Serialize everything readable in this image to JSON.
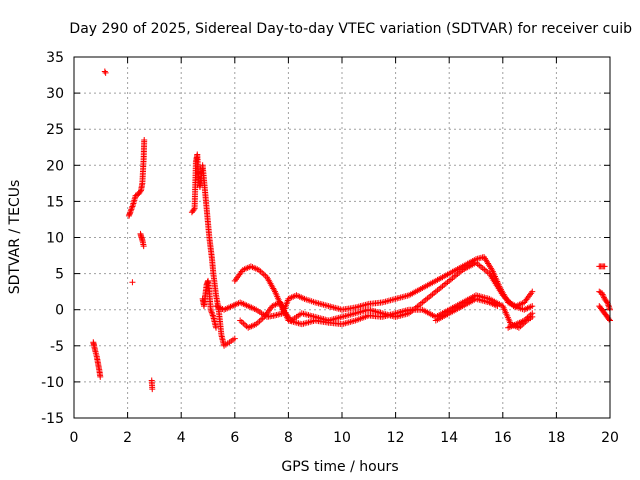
{
  "chart_data": {
    "type": "scatter",
    "title": "Day 290 of 2025, Sidereal Day-to-day VTEC variation (SDTVAR) for receiver cuib",
    "xlabel": "GPS time / hours",
    "ylabel": "SDTVAR / TECUs",
    "xlim": [
      0,
      20
    ],
    "ylim": [
      -15,
      35
    ],
    "xticks": [
      0,
      2,
      4,
      6,
      8,
      10,
      12,
      14,
      16,
      18,
      20
    ],
    "yticks": [
      -15,
      -10,
      -5,
      0,
      5,
      10,
      15,
      20,
      25,
      30,
      35
    ],
    "grid": true,
    "marker": "+",
    "color": "#ff0000",
    "series": [
      {
        "name": "SDTVAR",
        "segments": [
          {
            "x": [
              0.72,
              0.75,
              0.8,
              0.85,
              0.9,
              0.95,
              0.98
            ],
            "y": [
              -4.5,
              -5.0,
              -5.8,
              -6.5,
              -7.5,
              -8.5,
              -9.3
            ]
          },
          {
            "x": [
              1.15,
              1.18
            ],
            "y": [
              33.0,
              32.8
            ]
          },
          {
            "x": [
              2.05,
              2.1,
              2.2,
              2.3,
              2.4,
              2.5,
              2.55,
              2.6,
              2.62
            ],
            "y": [
              13.0,
              13.5,
              14.5,
              15.8,
              16.0,
              16.5,
              17.5,
              21.0,
              23.5
            ]
          },
          {
            "x": [
              2.48,
              2.52,
              2.56,
              2.6
            ],
            "y": [
              10.5,
              10.0,
              9.5,
              8.8
            ]
          },
          {
            "x": [
              2.18
            ],
            "y": [
              3.8
            ]
          },
          {
            "x": [
              2.9,
              2.92
            ],
            "y": [
              -9.8,
              -11.0
            ]
          },
          {
            "x": [
              4.4,
              4.5,
              4.55,
              4.6,
              4.65,
              4.7,
              4.8,
              4.9,
              4.95,
              5.0,
              5.05,
              5.1,
              5.15,
              5.2,
              5.3,
              5.4,
              5.5,
              5.6,
              5.8,
              6.0
            ],
            "y": [
              13.5,
              14.0,
              20.5,
              21.5,
              18.0,
              17.0,
              20.0,
              16.0,
              14.0,
              12.0,
              10.0,
              8.5,
              7.0,
              5.0,
              2.0,
              0.0,
              -3.5,
              -5.0,
              -4.5,
              -4.0
            ]
          },
          {
            "x": [
              4.8,
              4.85,
              4.9,
              4.95,
              5.0,
              5.05,
              5.1,
              5.2,
              5.3
            ],
            "y": [
              1.5,
              0.5,
              2.0,
              3.5,
              4.0,
              2.5,
              0.0,
              -1.0,
              -2.5
            ]
          },
          {
            "x": [
              5.3,
              5.6,
              5.9,
              6.2,
              6.5,
              6.8,
              7.0,
              7.2,
              7.5,
              7.8,
              8.0,
              8.3,
              8.6,
              9.0,
              9.5,
              10.0,
              10.5,
              11.0,
              11.5,
              12.0,
              12.5,
              13.0,
              13.5,
              14.0,
              14.5,
              15.0,
              15.3,
              15.6,
              15.9,
              16.2,
              16.5,
              16.8,
              17.1
            ],
            "y": [
              0.5,
              0.0,
              0.5,
              1.0,
              0.5,
              0.0,
              -0.5,
              -1.0,
              -0.8,
              -0.5,
              1.5,
              2.0,
              1.5,
              1.0,
              0.5,
              0.0,
              0.3,
              0.8,
              1.0,
              1.5,
              2.0,
              3.0,
              4.0,
              5.0,
              6.0,
              7.0,
              7.3,
              5.5,
              3.0,
              1.0,
              0.5,
              1.0,
              2.5
            ]
          },
          {
            "x": [
              6.0,
              6.3,
              6.6,
              6.9,
              7.2,
              7.5,
              7.8,
              8.1,
              8.5,
              9.0,
              9.5,
              10.0,
              10.5,
              11.0,
              11.5,
              12.0,
              12.5,
              13.0,
              13.5,
              14.0,
              14.5,
              15.0,
              15.5,
              16.0,
              16.4,
              16.8,
              17.1
            ],
            "y": [
              4.0,
              5.5,
              6.0,
              5.5,
              4.5,
              2.5,
              0.0,
              -1.5,
              -0.5,
              -1.0,
              -1.5,
              -1.0,
              -0.5,
              0.0,
              -0.5,
              -1.0,
              -0.5,
              1.0,
              2.5,
              4.0,
              5.5,
              6.5,
              5.0,
              2.0,
              0.5,
              0.0,
              0.5
            ]
          },
          {
            "x": [
              6.2,
              6.5,
              6.8,
              7.1,
              7.4,
              7.7,
              8.0,
              8.5,
              9.0,
              9.5,
              10.0,
              10.5,
              11.0,
              11.5,
              12.0,
              12.5,
              13.0,
              13.5,
              14.0,
              14.5,
              15.0,
              15.5,
              16.0,
              16.3,
              16.6,
              16.9,
              17.1
            ],
            "y": [
              -1.5,
              -2.5,
              -2.0,
              -1.0,
              0.5,
              1.0,
              -1.5,
              -2.0,
              -1.5,
              -1.8,
              -2.0,
              -1.5,
              -0.8,
              -1.0,
              -0.5,
              0.0,
              0.0,
              -1.0,
              0.0,
              1.0,
              2.0,
              1.5,
              0.5,
              -2.0,
              -2.5,
              -1.5,
              -1.0
            ]
          },
          {
            "x": [
              13.5,
              14.0,
              14.5,
              15.0,
              15.5,
              15.8
            ],
            "y": [
              -1.5,
              -0.5,
              0.5,
              1.5,
              1.0,
              0.5
            ]
          },
          {
            "x": [
              16.2,
              16.5,
              16.8,
              17.1
            ],
            "y": [
              -2.5,
              -2.0,
              -1.5,
              -0.5
            ]
          },
          {
            "x": [
              19.6,
              19.7,
              19.8
            ],
            "y": [
              6.0,
              6.0,
              6.0
            ]
          },
          {
            "x": [
              19.6,
              19.7,
              19.8,
              19.9,
              20.0
            ],
            "y": [
              2.5,
              2.3,
              1.5,
              1.0,
              0.0
            ]
          },
          {
            "x": [
              19.6,
              19.7,
              19.8,
              19.9,
              20.0
            ],
            "y": [
              0.5,
              0.0,
              -0.5,
              -1.0,
              -1.5
            ]
          }
        ]
      }
    ]
  }
}
